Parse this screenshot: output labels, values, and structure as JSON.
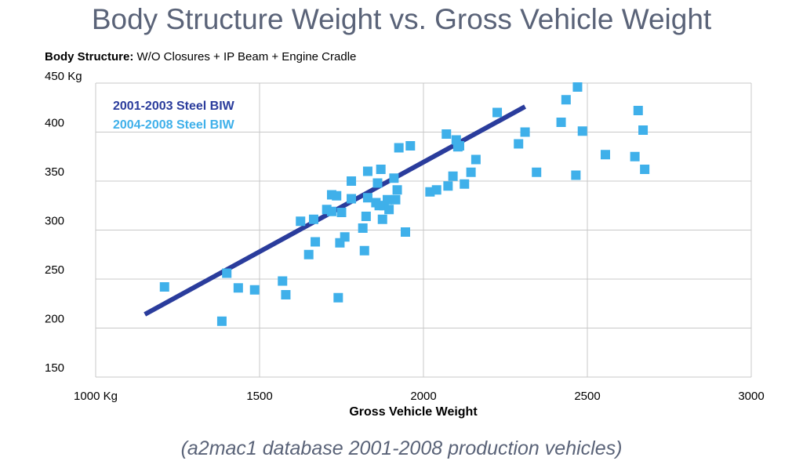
{
  "title": "Body Structure Weight vs. Gross Vehicle Weight",
  "subtitle_bold": "Body Structure:",
  "subtitle_rest": " W/O Closures + IP Beam + Engine Cradle",
  "footnote": "(a2mac1 database 2001-2008 production vehicles)",
  "colors": {
    "line": "#2a3c9c",
    "points": "#3fb0ea",
    "grid": "#c8c8c8",
    "axis_text": "#000000"
  },
  "chart_data": {
    "type": "scatter",
    "xlabel": "Gross Vehicle Weight",
    "ylabel": "",
    "xlim": [
      1000,
      3000
    ],
    "ylim": [
      150,
      450
    ],
    "x_ticks": [
      1000,
      1500,
      2000,
      2500,
      3000
    ],
    "x_tick_labels": [
      "1000 Kg",
      "1500",
      "2000",
      "2500",
      "3000"
    ],
    "y_ticks": [
      150,
      200,
      250,
      300,
      350,
      400,
      450
    ],
    "y_tick_labels": [
      "150",
      "200",
      "250",
      "300",
      "350",
      "400",
      "450 Kg"
    ],
    "grid": true,
    "legend_position": "top-left",
    "series": [
      {
        "name": "2001-2003 Steel BIW",
        "kind": "line",
        "x": [
          1150,
          2310
        ],
        "y": [
          214,
          426
        ]
      },
      {
        "name": "2004-2008 Steel BIW",
        "kind": "scatter",
        "x": [
          1210,
          1385,
          1400,
          1435,
          1485,
          1570,
          1580,
          1625,
          1650,
          1665,
          1670,
          1705,
          1720,
          1720,
          1735,
          1740,
          1745,
          1750,
          1760,
          1780,
          1780,
          1815,
          1820,
          1825,
          1830,
          1830,
          1855,
          1860,
          1865,
          1870,
          1875,
          1880,
          1890,
          1895,
          1910,
          1915,
          1920,
          1925,
          1945,
          1960,
          2020,
          2040,
          2070,
          2075,
          2090,
          2100,
          2105,
          2110,
          2125,
          2145,
          2160,
          2225,
          2290,
          2310,
          2345,
          2420,
          2435,
          2465,
          2470,
          2485,
          2555,
          2645,
          2655,
          2670,
          2675
        ],
        "y": [
          242,
          207,
          256,
          241,
          239,
          248,
          234,
          309,
          275,
          311,
          288,
          321,
          336,
          319,
          335,
          231,
          287,
          318,
          293,
          350,
          332,
          302,
          279,
          314,
          360,
          333,
          328,
          348,
          325,
          362,
          311,
          325,
          331,
          321,
          353,
          331,
          341,
          384,
          298,
          386,
          339,
          341,
          398,
          345,
          355,
          392,
          385,
          386,
          347,
          359,
          372,
          420,
          388,
          400,
          359,
          410,
          433,
          356,
          446,
          401,
          377,
          375,
          422,
          402,
          362
        ]
      }
    ]
  }
}
